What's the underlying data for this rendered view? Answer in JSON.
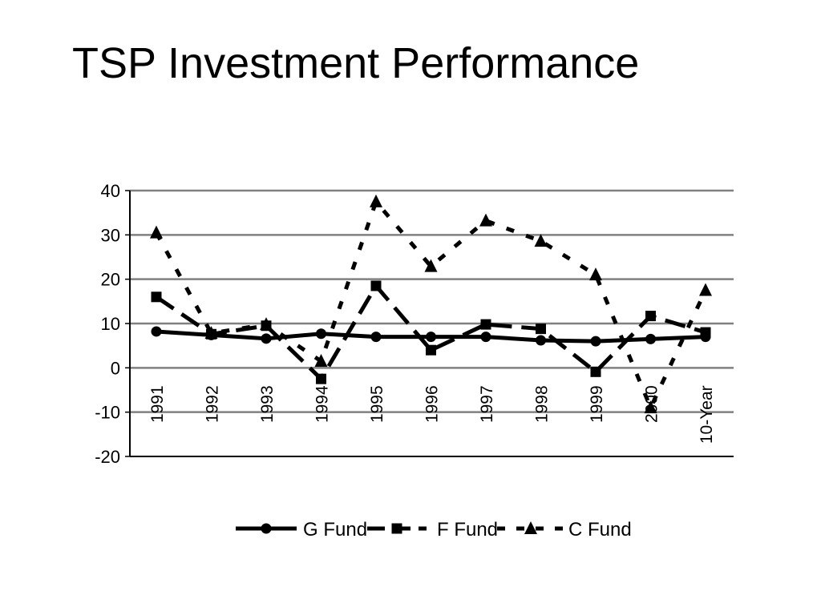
{
  "slide": {
    "title": "TSP Investment Performance"
  },
  "colors": {
    "series": "#000000",
    "grid": "#808080",
    "background": "#ffffff"
  },
  "chart_data": {
    "type": "line",
    "title": "",
    "xlabel": "",
    "ylabel": "",
    "categories": [
      "1991",
      "1992",
      "1993",
      "1994",
      "1995",
      "1996",
      "1997",
      "1998",
      "1999",
      "2000",
      "10-Year"
    ],
    "ylim": [
      -20,
      40
    ],
    "yticks": [
      40,
      30,
      20,
      10,
      0,
      -10,
      -20
    ],
    "grid": "horizontal",
    "legend_position": "bottom",
    "series": [
      {
        "name": "G Fund",
        "style": "solid",
        "marker": "circle",
        "values": [
          8.2,
          7.4,
          6.6,
          7.7,
          7.0,
          7.0,
          7.0,
          6.2,
          6.0,
          6.5,
          7.0
        ]
      },
      {
        "name": "F Fund",
        "style": "dashed",
        "marker": "square",
        "values": [
          16.0,
          7.6,
          9.5,
          -2.5,
          18.5,
          4.0,
          9.8,
          8.8,
          -0.9,
          11.7,
          8.0
        ]
      },
      {
        "name": "C Fund",
        "style": "dotted",
        "marker": "triangle",
        "values": [
          30.5,
          7.8,
          9.8,
          1.5,
          37.5,
          22.9,
          33.2,
          28.6,
          21.0,
          -9.0,
          17.5
        ]
      }
    ]
  }
}
